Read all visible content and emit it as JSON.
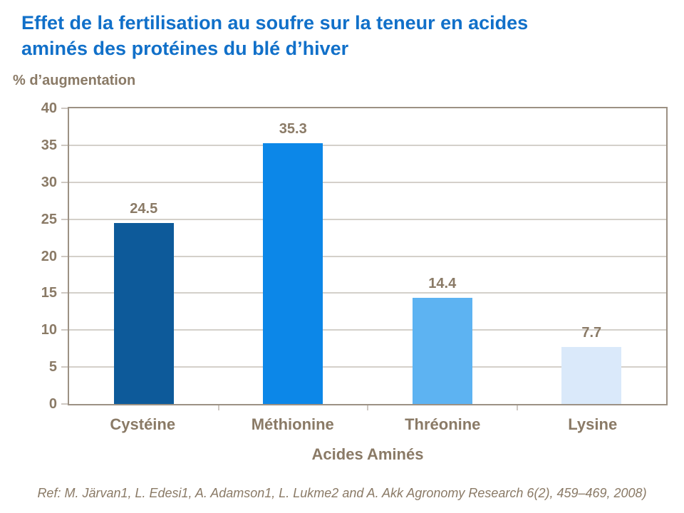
{
  "title": {
    "text": "Effet de la fertilisation au soufre sur la teneur en acides aminés des protéines du blé d’hiver"
  },
  "y_axis_unit": "% d’augmentation",
  "chart_data": {
    "type": "bar",
    "title": "Effet de la fertilisation au soufre sur la teneur en acides aminés des protéines du blé d’hiver",
    "categories": [
      "Cystéine",
      "Méthionine",
      "Thréonine",
      "Lysine"
    ],
    "values": [
      24.5,
      35.3,
      14.4,
      7.7
    ],
    "data_labels": [
      "24.5",
      "35.3",
      "14.4",
      "7.7"
    ],
    "bar_colors": [
      "#0D5A9A",
      "#0C87E8",
      "#5DB3F2",
      "#DAE9FA"
    ],
    "xlabel": "Acides Aminés",
    "ylabel": "% d’augmentation",
    "ylim": [
      0,
      40
    ],
    "yticks": [
      0,
      5,
      10,
      15,
      20,
      25,
      30,
      35,
      40
    ],
    "grid": true,
    "legend": "none"
  },
  "footer": {
    "reference": "Ref: M. Järvan1, L. Edesi1, A. Adamson1, L. Lukme2 and A. Akk Agronomy Research 6(2), 459–469, 2008)"
  },
  "colors": {
    "title_blue": "#1170C9",
    "axis_text_brown": "#8A7A66",
    "plot_frame": "#9C9184",
    "gridline": "#A9A095"
  }
}
